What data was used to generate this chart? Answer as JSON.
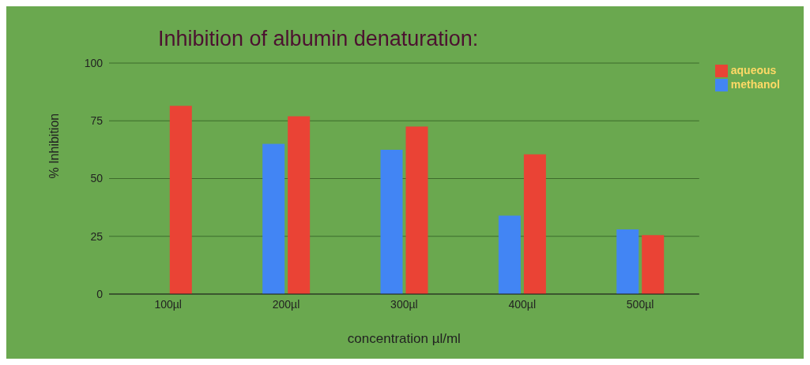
{
  "chart_data": {
    "type": "bar",
    "title": "Inhibition of albumin denaturation:",
    "xlabel": "concentration µl/ml",
    "ylabel": "% Inhibition",
    "categories": [
      "100µl",
      "200µl",
      "300µl",
      "400µl",
      "500µl"
    ],
    "series": [
      {
        "name": "methanol",
        "color": "#4285f4",
        "values": [
          null,
          65,
          62.5,
          34,
          28
        ]
      },
      {
        "name": "aqueous",
        "color": "#ea4335",
        "values": [
          81.5,
          77,
          72.5,
          60.5,
          25.5
        ]
      }
    ],
    "ylim": [
      0,
      100
    ],
    "yticks": [
      0,
      25,
      50,
      75,
      100
    ],
    "grid": "y",
    "legend": "top right"
  }
}
